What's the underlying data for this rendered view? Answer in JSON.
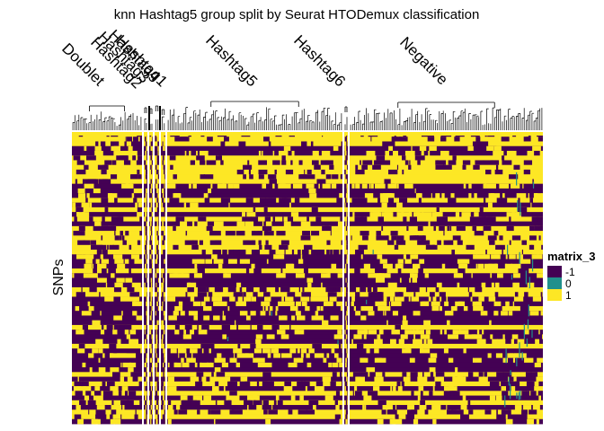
{
  "chart_data": {
    "type": "heatmap",
    "title": "knn Hashtag5 group split by Seurat HTODemux classification",
    "ylabel": "SNPs",
    "column_groups": [
      "Doublet",
      "Hashtag2",
      "Hashtag3",
      "Hashtag4",
      "Hashtag1",
      "Hashtag5",
      "Hashtag6",
      "Negative"
    ],
    "legend": {
      "title": "matrix_3",
      "entries": [
        {
          "label": "-1",
          "color": "#440154"
        },
        {
          "label": "0",
          "color": "#21908C"
        },
        {
          "label": "1",
          "color": "#FDE725"
        }
      ]
    },
    "values_present": [
      -1,
      0,
      1
    ]
  }
}
